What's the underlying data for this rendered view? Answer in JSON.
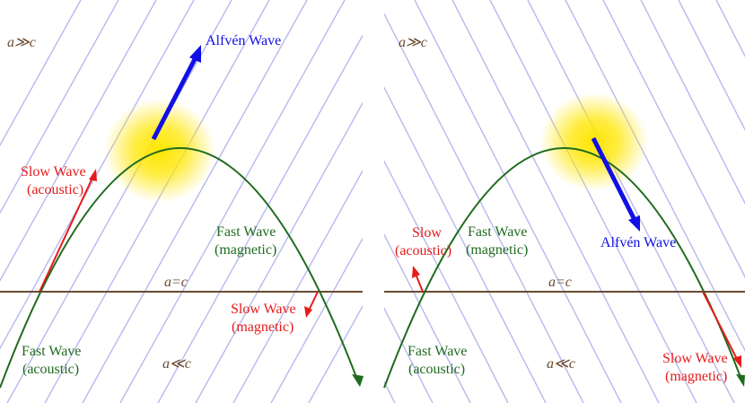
{
  "colors": {
    "field_lines": "#b8b8f0",
    "equipartition_line": "#6b4a2e",
    "ray_path": "#1e6b1e",
    "alfven_arrow": "#1010e6",
    "slow_wave": "#e61a1a",
    "region_label": "#6b4a2e",
    "glow": "#ffe600"
  },
  "left_panel": {
    "label_top": "a≫c",
    "label_mid": "a=c",
    "label_bottom": "a≪c",
    "alfven": "Alfvén Wave",
    "slow_upper_line1": "Slow Wave",
    "slow_upper_line2": "(acoustic)",
    "fast_upper_line1": "Fast Wave",
    "fast_upper_line2": "(magnetic)",
    "slow_lower_line1": "Slow Wave",
    "slow_lower_line2": "(magnetic)",
    "fast_lower_line1": "Fast Wave",
    "fast_lower_line2": "(acoustic)"
  },
  "right_panel": {
    "label_top": "a≫c",
    "label_mid": "a=c",
    "label_bottom": "a≪c",
    "alfven": "Alfvén Wave",
    "slow_upper_line1": "Slow",
    "slow_upper_line2": "(acoustic)",
    "fast_upper_line1": "Fast Wave",
    "fast_upper_line2": "(magnetic)",
    "slow_lower_line1": "Slow Wave",
    "slow_lower_line2": "(magnetic)",
    "fast_lower_line1": "Fast Wave",
    "fast_lower_line2": "(acoustic)"
  }
}
